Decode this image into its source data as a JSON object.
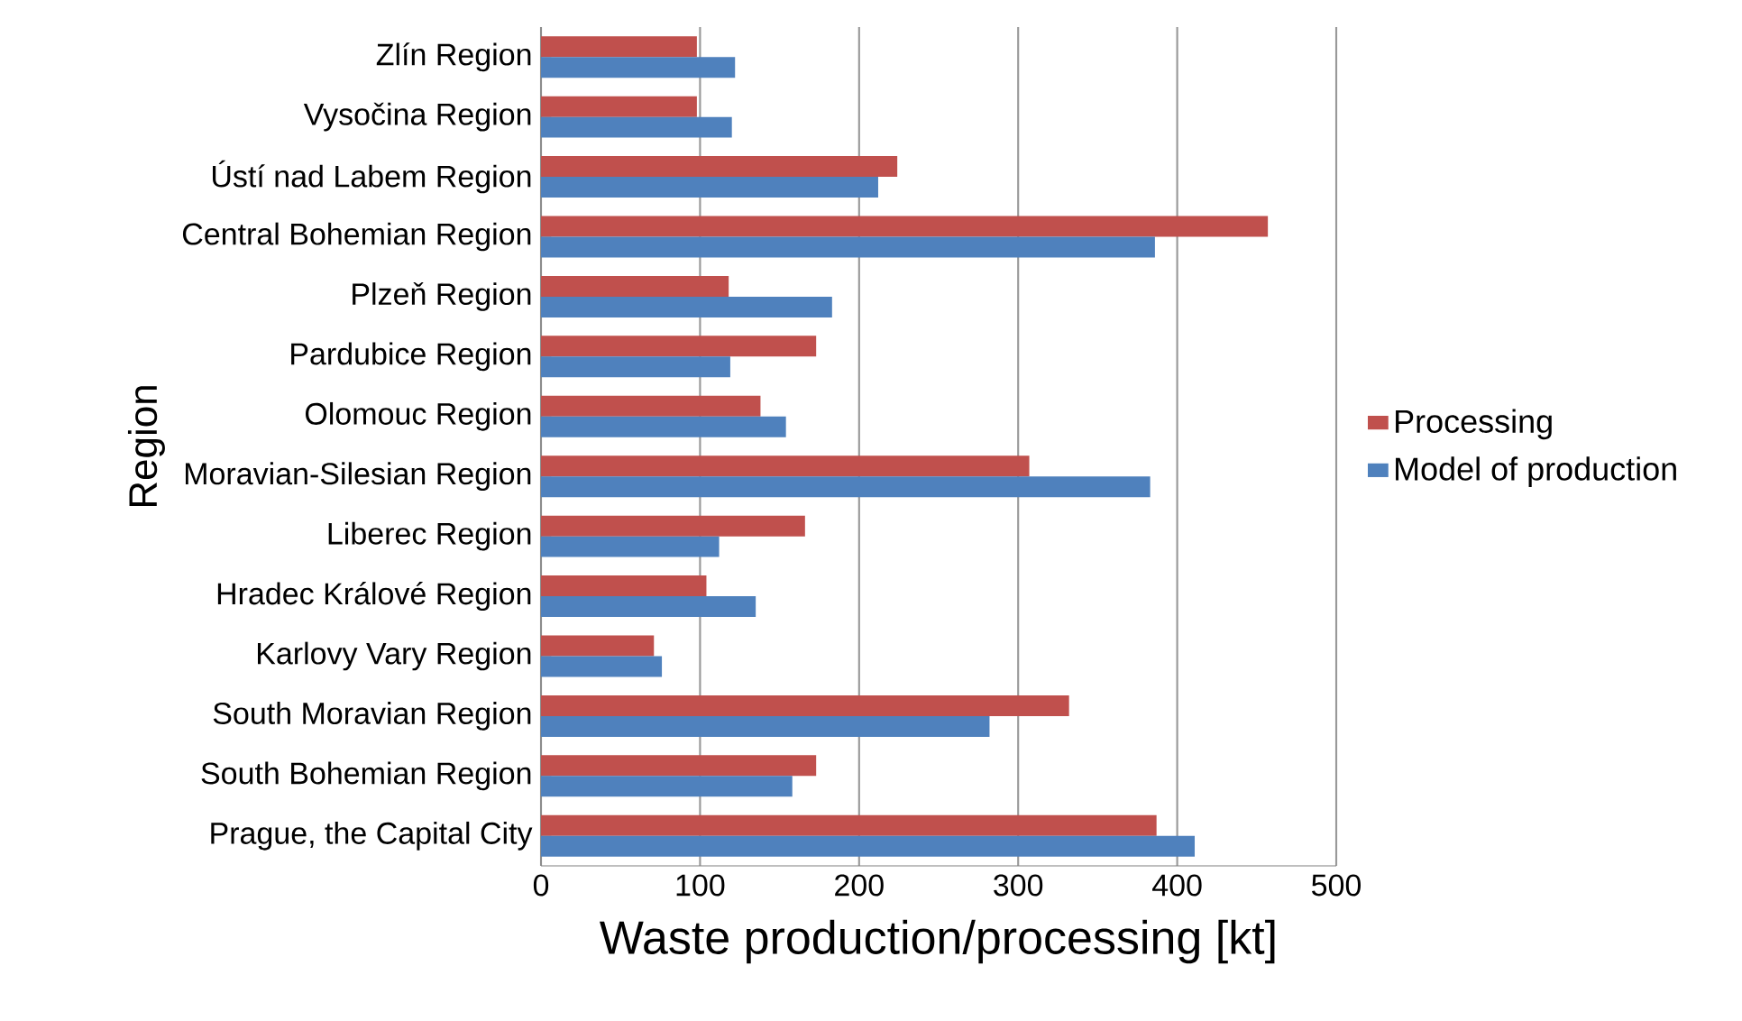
{
  "chart_data": {
    "type": "bar",
    "orientation": "horizontal",
    "xlabel": "Waste production/processing  [kt]",
    "ylabel": "Region",
    "categories": [
      "Zlín Region",
      "Vysočina Region",
      "Ústí nad Labem Region",
      "Central Bohemian Region",
      "Plzeň Region",
      "Pardubice Region",
      "Olomouc Region",
      "Moravian-Silesian Region",
      "Liberec Region",
      "Hradec Králové Region",
      "Karlovy Vary Region",
      "South Moravian Region",
      "South Bohemian Region",
      "Prague, the Capital City"
    ],
    "series": [
      {
        "name": "Processing",
        "color": "#c0504d",
        "values": [
          98,
          98,
          224,
          457,
          118,
          173,
          138,
          307,
          166,
          104,
          71,
          332,
          173,
          387
        ]
      },
      {
        "name": "Model of production",
        "color": "#4f81bd",
        "values": [
          122,
          120,
          212,
          386,
          183,
          119,
          154,
          383,
          112,
          135,
          76,
          282,
          158,
          411
        ]
      }
    ],
    "xlim": [
      0,
      500
    ],
    "xticks": [
      0,
      100,
      200,
      300,
      400,
      500
    ],
    "grid": "x",
    "legend": "right"
  }
}
